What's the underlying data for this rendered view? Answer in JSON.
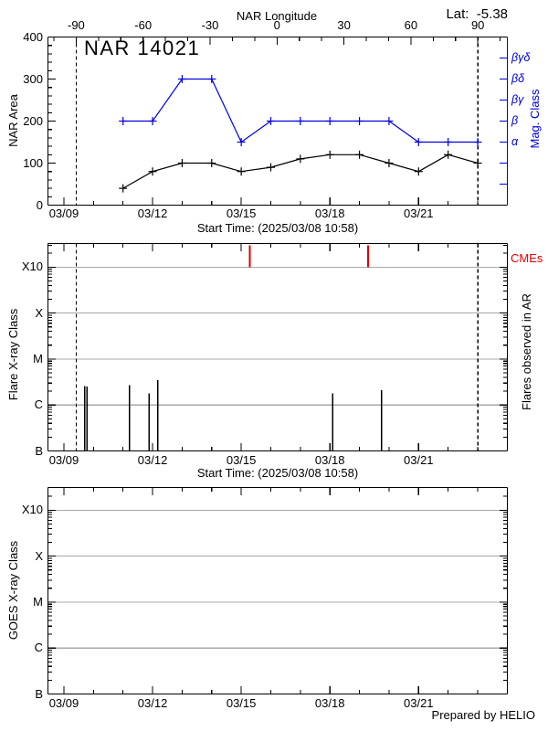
{
  "header": {
    "title": "NAR 14021",
    "lat_label": "Lat:  -5.38"
  },
  "footer": {
    "credit": "Prepared by HELIO"
  },
  "colors": {
    "blue": "#0000dd",
    "red": "#e00000",
    "grid": "#a8a8a8",
    "black": "#000000"
  },
  "time_axis": {
    "start": "2025-03-08T10:58:00Z",
    "start_label": "Start Time: (2025/03/08 10:58)",
    "first_tick": "2025-03-09T00:00:00Z",
    "num_days": 16,
    "major_every_days": 3,
    "major_tick_labels": [
      "03/09",
      "03/12",
      "03/15",
      "03/18",
      "03/21"
    ]
  },
  "chart_data": [
    {
      "type": "line",
      "title": "NAR 14021",
      "ylabel": "NAR Area",
      "ylim": [
        0,
        400
      ],
      "yticks": [
        0,
        100,
        200,
        300,
        400
      ],
      "y_minor_step": 20,
      "top_axis": {
        "label": "NAR Longitude",
        "ticks": [
          -90,
          -60,
          -30,
          0,
          30,
          60,
          90
        ],
        "minor_step": 10
      },
      "limb_longitudes": [
        -90,
        90
      ],
      "lat": -5.38,
      "x": [
        "2025-03-11",
        "2025-03-12",
        "2025-03-13",
        "2025-03-14",
        "2025-03-15",
        "2025-03-16",
        "2025-03-17",
        "2025-03-18",
        "2025-03-19",
        "2025-03-20",
        "2025-03-21",
        "2025-03-22",
        "2025-03-23"
      ],
      "series": [
        {
          "name": "NAR Area",
          "color": "#000000",
          "values": [
            40,
            80,
            100,
            100,
            80,
            90,
            110,
            120,
            120,
            100,
            80,
            120,
            100
          ]
        },
        {
          "name": "Mag. Class",
          "color": "#0000dd",
          "classes": [
            "β",
            "β",
            "βδ",
            "βδ",
            "α",
            "β",
            "β",
            "β",
            "β",
            "β",
            "α",
            "α",
            "α"
          ]
        }
      ],
      "right_axis": {
        "label": "Mag. Class",
        "levels": [
          {
            "label": "α",
            "value": 150
          },
          {
            "label": "β",
            "value": 200
          },
          {
            "label": "βγ",
            "value": 250
          },
          {
            "label": "βδ",
            "value": 300
          },
          {
            "label": "βγδ",
            "value": 350
          }
        ],
        "tick_min": 50,
        "tick_max": 350,
        "tick_step": 50
      }
    },
    {
      "type": "event",
      "ylabel": "Flare X-ray Class",
      "right_label": "Flares observed in AR",
      "yticks": [
        "B",
        "C",
        "M",
        "X",
        "X10"
      ],
      "show_limb_lines": true,
      "flares": [
        {
          "time": "2025-03-09T16:50:00Z",
          "class": "C2.6"
        },
        {
          "time": "2025-03-09T18:45:00Z",
          "class": "C2.5"
        },
        {
          "time": "2025-03-11T05:10:00Z",
          "class": "C2.7"
        },
        {
          "time": "2025-03-11T21:10:00Z",
          "class": "C1.8"
        },
        {
          "time": "2025-03-12T04:10:00Z",
          "class": "C3.5"
        },
        {
          "time": "2025-03-18T02:20:00Z",
          "class": "C1.8"
        },
        {
          "time": "2025-03-19T17:50:00Z",
          "class": "C2.1"
        }
      ],
      "cmes": {
        "label": "CMEs",
        "times": [
          "2025-03-15T07:00:00Z",
          "2025-03-19T07:00:00Z"
        ]
      }
    },
    {
      "type": "event",
      "ylabel": "GOES X-ray Class",
      "yticks": [
        "B",
        "C",
        "M",
        "X",
        "X10"
      ],
      "show_limb_lines": false,
      "flares": [],
      "cmes": null
    }
  ]
}
